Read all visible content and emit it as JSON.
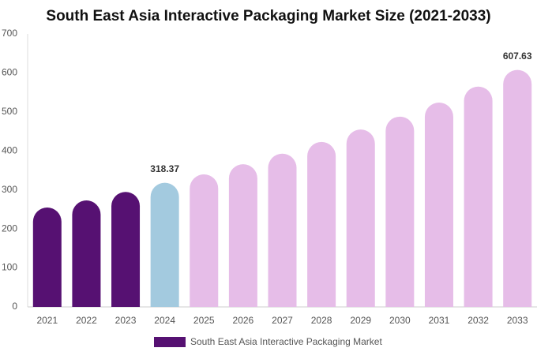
{
  "chart_data": {
    "type": "bar",
    "title": "South East Asia Interactive Packaging Market Size (2021-2033)",
    "categories": [
      "2021",
      "2022",
      "2023",
      "2024",
      "2025",
      "2026",
      "2027",
      "2028",
      "2029",
      "2030",
      "2031",
      "2032",
      "2033"
    ],
    "series": [
      {
        "name": "South East Asia Interactive Packaging Market",
        "color": "#561172",
        "values": [
          255,
          273,
          295,
          318.37,
          340,
          366,
          393,
          423,
          455,
          488,
          524,
          565,
          607.63
        ],
        "value_labels": [
          null,
          null,
          null,
          "318.37",
          null,
          null,
          null,
          null,
          null,
          null,
          null,
          null,
          "607.63"
        ],
        "colors": [
          "#561172",
          "#561172",
          "#561172",
          "#a3cadf",
          "#e6bde8",
          "#e6bde8",
          "#e6bde8",
          "#e6bde8",
          "#e6bde8",
          "#e6bde8",
          "#e6bde8",
          "#e6bde8",
          "#e6bde8"
        ]
      }
    ],
    "ylim": [
      0,
      700
    ],
    "yticks": [
      0,
      100,
      200,
      300,
      400,
      500,
      600,
      700
    ],
    "grid": false,
    "legend": "bottom"
  }
}
